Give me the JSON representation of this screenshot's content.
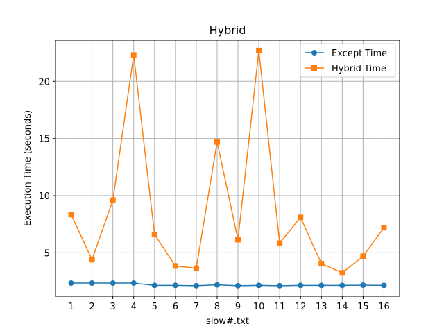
{
  "chart_data": {
    "type": "line",
    "title": "Hybrid",
    "xlabel": "slow#.txt",
    "ylabel": "Execution Time (seconds)",
    "x": [
      1,
      2,
      3,
      4,
      5,
      6,
      7,
      8,
      9,
      10,
      11,
      12,
      13,
      14,
      15,
      16
    ],
    "xticks": [
      "1",
      "2",
      "3",
      "4",
      "5",
      "6",
      "7",
      "8",
      "9",
      "10",
      "11",
      "12",
      "13",
      "14",
      "15",
      "16"
    ],
    "yticks": [
      5,
      10,
      15,
      20
    ],
    "xlim": [
      0.25,
      16.75
    ],
    "ylim": [
      1.2,
      23.6
    ],
    "grid": true,
    "legend_position": "top-right",
    "series": [
      {
        "name": "Except Time",
        "color": "#1f77b4",
        "marker": "circle",
        "values": [
          2.35,
          2.35,
          2.35,
          2.35,
          2.15,
          2.15,
          2.12,
          2.2,
          2.12,
          2.15,
          2.12,
          2.15,
          2.15,
          2.15,
          2.17,
          2.15
        ]
      },
      {
        "name": "Hybrid Time",
        "color": "#ff7f0e",
        "marker": "square",
        "values": [
          8.35,
          4.4,
          9.6,
          22.3,
          6.6,
          3.85,
          3.65,
          14.7,
          6.15,
          22.7,
          5.85,
          8.1,
          4.05,
          3.25,
          4.7,
          7.2
        ]
      }
    ]
  }
}
